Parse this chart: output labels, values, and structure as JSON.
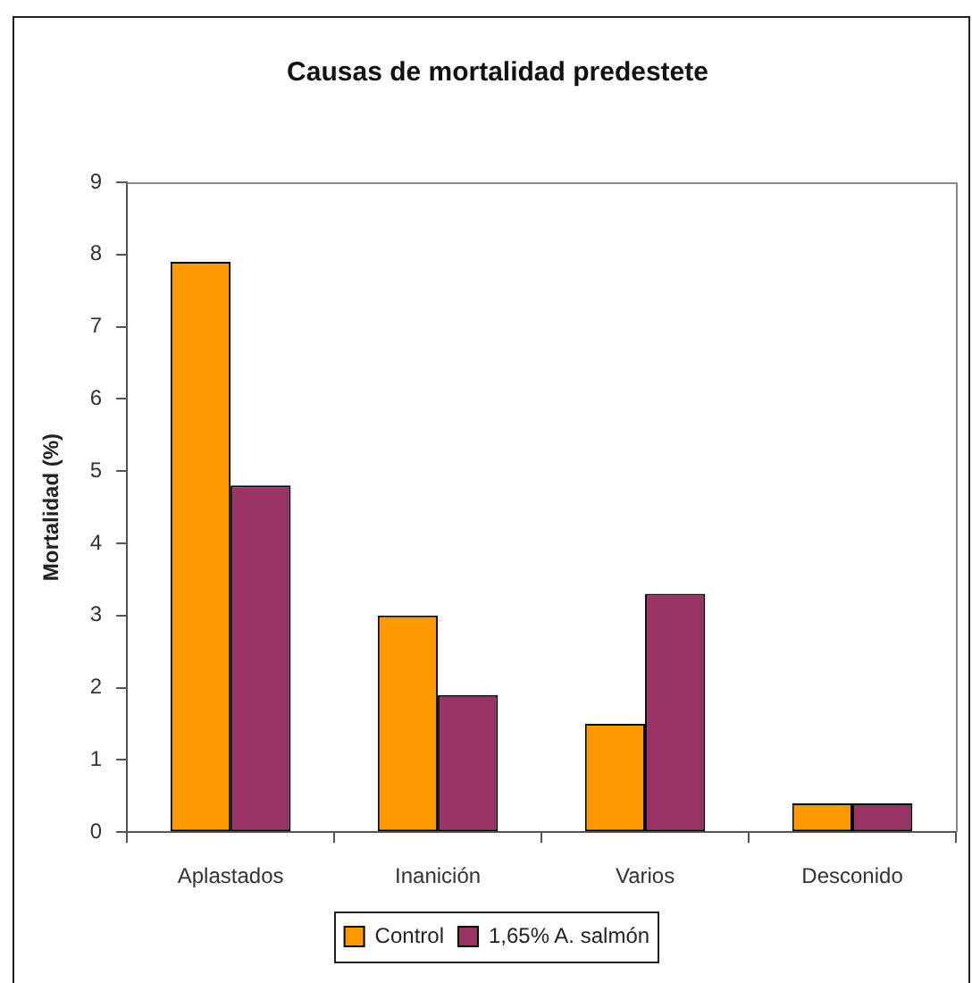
{
  "chart_data": {
    "type": "bar",
    "title": "Causas de mortalidad predestete",
    "ylabel": "Mortalidad (%)",
    "categories": [
      "Aplastados",
      "Inanición",
      "Varios",
      "Desconido"
    ],
    "series": [
      {
        "name": "Control",
        "color": "#ff9900",
        "values": [
          7.9,
          3.0,
          1.5,
          0.4
        ]
      },
      {
        "name": "1,65% A. salmón",
        "color": "#993366",
        "values": [
          4.8,
          1.9,
          3.3,
          0.4
        ]
      }
    ],
    "ylim": [
      0,
      9
    ],
    "yticks": [
      0,
      1,
      2,
      3,
      4,
      5,
      6,
      7,
      8,
      9
    ],
    "grid": false,
    "legend": "bottom"
  }
}
